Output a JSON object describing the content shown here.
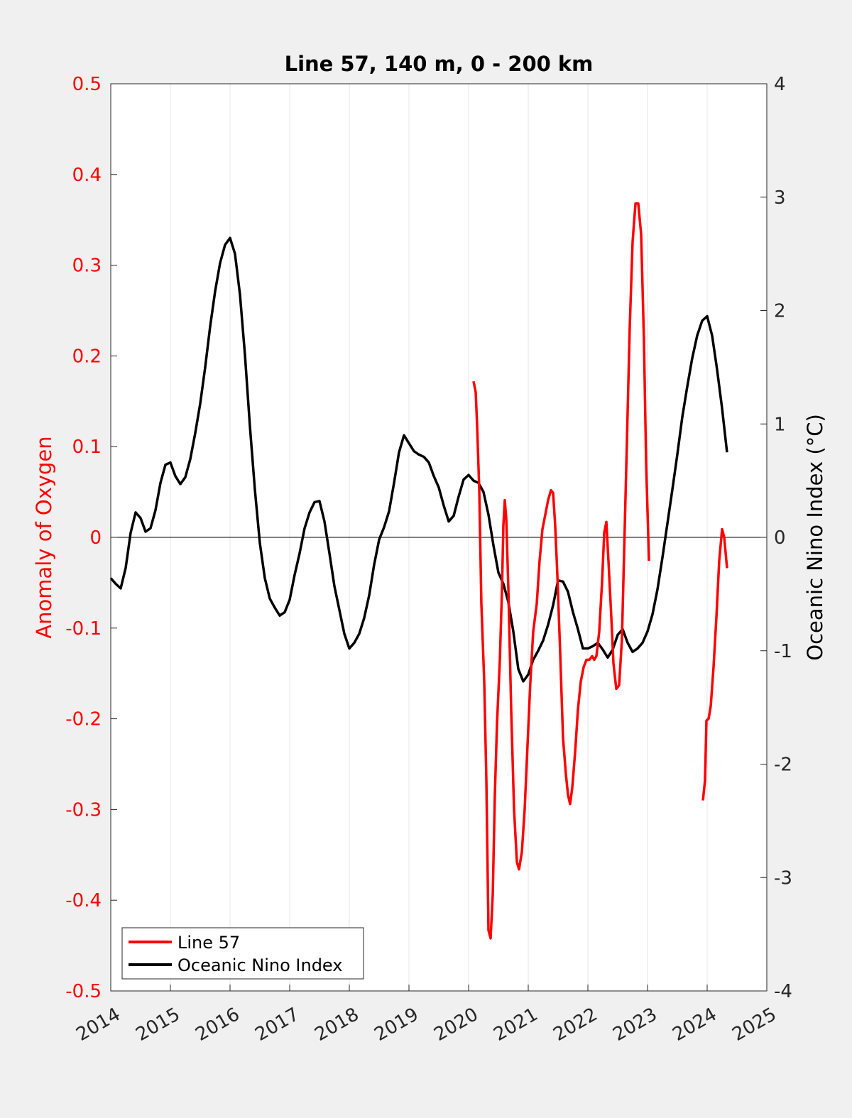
{
  "chart_data": {
    "type": "line",
    "title": "Line 57, 140 m, 0 - 200 km",
    "xlabel": "",
    "ylabel_left": "Anomaly of Oxygen",
    "ylabel_right": "Oceanic Nino Index (°C)",
    "xlim": [
      2014,
      2025
    ],
    "ylim_left": [
      -0.5,
      0.5
    ],
    "ylim_right": [
      -4,
      4
    ],
    "x_ticks": [
      "2014",
      "2015",
      "2016",
      "2017",
      "2018",
      "2019",
      "2020",
      "2021",
      "2022",
      "2023",
      "2024",
      "2025"
    ],
    "y_left_ticks": [
      "0.5",
      "0.4",
      "0.3",
      "0.2",
      "0.1",
      "0",
      "-0.1",
      "-0.2",
      "-0.3",
      "-0.4",
      "-0.5"
    ],
    "y_right_ticks": [
      "4",
      "3",
      "2",
      "1",
      "0",
      "-1",
      "-2",
      "-3",
      "-4"
    ],
    "grid": "vertical at x ticks",
    "legend_position": "bottom-left",
    "colors": {
      "line57": "#ff0000",
      "oni": "#000000",
      "left_axis": "#ff0000"
    },
    "series": [
      {
        "name": "Line 57",
        "axis": "left",
        "segments": [
          [
            [
              2020.083,
              0.172
            ],
            [
              2020.119,
              0.16
            ],
            [
              2020.143,
              0.123
            ],
            [
              2020.179,
              0.052
            ],
            [
              2020.214,
              -0.073
            ],
            [
              2020.262,
              -0.159
            ],
            [
              2020.298,
              -0.268
            ],
            [
              2020.333,
              -0.433
            ],
            [
              2020.369,
              -0.442
            ],
            [
              2020.405,
              -0.394
            ],
            [
              2020.44,
              -0.284
            ],
            [
              2020.476,
              -0.206
            ],
            [
              2020.524,
              -0.135
            ],
            [
              2020.56,
              -0.057
            ],
            [
              2020.583,
              0.013
            ],
            [
              2020.607,
              0.041
            ],
            [
              2020.631,
              0.021
            ],
            [
              2020.667,
              -0.057
            ],
            [
              2020.714,
              -0.19
            ],
            [
              2020.762,
              -0.3
            ],
            [
              2020.81,
              -0.358
            ],
            [
              2020.845,
              -0.366
            ],
            [
              2020.893,
              -0.347
            ],
            [
              2020.94,
              -0.3
            ],
            [
              2020.988,
              -0.229
            ],
            [
              2021.036,
              -0.159
            ],
            [
              2021.083,
              -0.104
            ],
            [
              2021.143,
              -0.073
            ],
            [
              2021.19,
              -0.026
            ],
            [
              2021.238,
              0.009
            ],
            [
              2021.286,
              0.025
            ],
            [
              2021.333,
              0.041
            ],
            [
              2021.381,
              0.052
            ],
            [
              2021.417,
              0.049
            ],
            [
              2021.452,
              0.013
            ],
            [
              2021.488,
              -0.041
            ],
            [
              2021.536,
              -0.128
            ],
            [
              2021.583,
              -0.221
            ],
            [
              2021.631,
              -0.261
            ],
            [
              2021.667,
              -0.284
            ],
            [
              2021.702,
              -0.294
            ],
            [
              2021.738,
              -0.276
            ],
            [
              2021.786,
              -0.237
            ],
            [
              2021.833,
              -0.19
            ],
            [
              2021.881,
              -0.159
            ],
            [
              2021.929,
              -0.143
            ],
            [
              2021.976,
              -0.135
            ],
            [
              2022.024,
              -0.135
            ],
            [
              2022.071,
              -0.131
            ],
            [
              2022.107,
              -0.135
            ],
            [
              2022.143,
              -0.131
            ],
            [
              2022.19,
              -0.104
            ],
            [
              2022.238,
              -0.049
            ],
            [
              2022.274,
              0.005
            ],
            [
              2022.31,
              0.017
            ],
            [
              2022.345,
              -0.026
            ],
            [
              2022.393,
              -0.088
            ],
            [
              2022.429,
              -0.139
            ],
            [
              2022.476,
              -0.167
            ],
            [
              2022.524,
              -0.163
            ],
            [
              2022.571,
              -0.112
            ],
            [
              2022.607,
              -0.018
            ],
            [
              2022.655,
              0.107
            ],
            [
              2022.702,
              0.232
            ],
            [
              2022.75,
              0.326
            ],
            [
              2022.798,
              0.368
            ],
            [
              2022.845,
              0.368
            ],
            [
              2022.893,
              0.334
            ],
            [
              2022.94,
              0.217
            ],
            [
              2022.976,
              0.084
            ],
            [
              2023.024,
              -0.026
            ]
          ],
          [
            [
              2023.929,
              -0.29
            ],
            [
              2023.964,
              -0.268
            ],
            [
              2023.988,
              -0.202
            ],
            [
              2024.024,
              -0.2
            ],
            [
              2024.06,
              -0.186
            ],
            [
              2024.107,
              -0.143
            ],
            [
              2024.155,
              -0.088
            ],
            [
              2024.202,
              -0.026
            ],
            [
              2024.25,
              0.009
            ],
            [
              2024.286,
              0.0
            ],
            [
              2024.333,
              -0.034
            ]
          ]
        ]
      },
      {
        "name": "Oceanic Nino Index",
        "axis": "right",
        "x_start": 2014.0,
        "x_step_years": 0.08333,
        "values": [
          -0.36,
          -0.41,
          -0.45,
          -0.27,
          0.04,
          0.22,
          0.17,
          0.05,
          0.08,
          0.24,
          0.48,
          0.64,
          0.66,
          0.54,
          0.47,
          0.53,
          0.69,
          0.92,
          1.18,
          1.5,
          1.86,
          2.17,
          2.42,
          2.58,
          2.64,
          2.5,
          2.14,
          1.61,
          0.98,
          0.42,
          -0.05,
          -0.36,
          -0.54,
          -0.62,
          -0.69,
          -0.66,
          -0.55,
          -0.33,
          -0.14,
          0.08,
          0.22,
          0.31,
          0.32,
          0.14,
          -0.14,
          -0.43,
          -0.64,
          -0.85,
          -0.98,
          -0.93,
          -0.85,
          -0.71,
          -0.51,
          -0.24,
          -0.02,
          0.09,
          0.23,
          0.48,
          0.75,
          0.9,
          0.83,
          0.76,
          0.73,
          0.71,
          0.66,
          0.54,
          0.44,
          0.28,
          0.14,
          0.19,
          0.36,
          0.51,
          0.55,
          0.5,
          0.48,
          0.4,
          0.2,
          -0.07,
          -0.31,
          -0.41,
          -0.57,
          -0.83,
          -1.16,
          -1.27,
          -1.21,
          -1.08,
          -1.0,
          -0.91,
          -0.77,
          -0.6,
          -0.38,
          -0.39,
          -0.48,
          -0.66,
          -0.81,
          -0.98,
          -0.98,
          -0.96,
          -0.93,
          -0.99,
          -1.06,
          -0.99,
          -0.86,
          -0.81,
          -0.93,
          -1.01,
          -0.98,
          -0.93,
          -0.83,
          -0.68,
          -0.46,
          -0.18,
          0.12,
          0.42,
          0.73,
          1.06,
          1.33,
          1.58,
          1.78,
          1.91,
          1.95,
          1.78,
          1.48,
          1.14,
          0.75
        ]
      }
    ]
  }
}
